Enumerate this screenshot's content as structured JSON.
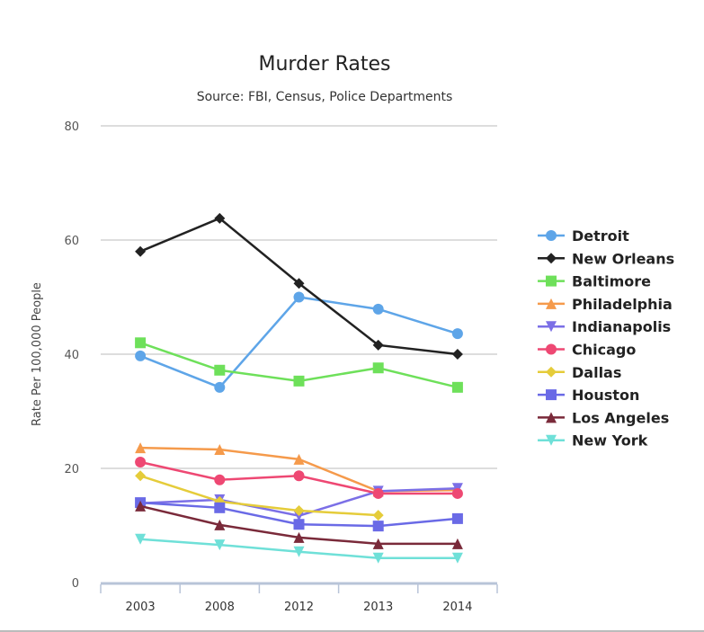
{
  "chart_data": {
    "type": "line",
    "title": "Murder Rates",
    "subtitle": "Source: FBI, Census, Police Departments",
    "xlabel": "",
    "ylabel": "Rate Per 100,000 People",
    "ylim": [
      0,
      80
    ],
    "yticks": [
      0,
      20,
      40,
      60,
      80
    ],
    "grid": true,
    "legend_position": "right",
    "categories": [
      "2003",
      "2008",
      "2012",
      "2013",
      "2014"
    ],
    "series": [
      {
        "name": "Detroit",
        "color": "#5ea5e8",
        "marker": "circle",
        "values": [
          39.7,
          34.2,
          50.0,
          47.9,
          43.6
        ]
      },
      {
        "name": "New Orleans",
        "color": "#222222",
        "marker": "diamond",
        "values": [
          58.0,
          63.8,
          52.4,
          41.6,
          40.0
        ]
      },
      {
        "name": "Baltimore",
        "color": "#6ee05a",
        "marker": "square",
        "values": [
          42.0,
          37.2,
          35.3,
          37.6,
          34.2
        ]
      },
      {
        "name": "Philadelphia",
        "color": "#f59a4b",
        "marker": "triangle",
        "values": [
          23.6,
          23.3,
          21.6,
          16.0,
          16.2
        ]
      },
      {
        "name": "Indianapolis",
        "color": "#7b6fe6",
        "marker": "triangle-down",
        "values": [
          13.9,
          14.5,
          11.7,
          16.0,
          16.5
        ]
      },
      {
        "name": "Chicago",
        "color": "#ee4873",
        "marker": "circle",
        "values": [
          21.1,
          18.0,
          18.7,
          15.6,
          15.6
        ]
      },
      {
        "name": "Dallas",
        "color": "#e5cc3a",
        "marker": "diamond",
        "values": [
          18.7,
          14.2,
          12.6,
          11.8,
          null
        ]
      },
      {
        "name": "Houston",
        "color": "#6a6ae6",
        "marker": "square",
        "values": [
          14.0,
          13.1,
          10.2,
          9.9,
          11.2
        ]
      },
      {
        "name": "Los Angeles",
        "color": "#7a2a3a",
        "marker": "triangle",
        "values": [
          13.4,
          10.1,
          7.9,
          6.8,
          6.8
        ]
      },
      {
        "name": "New York",
        "color": "#6fe0d8",
        "marker": "triangle-down",
        "values": [
          7.6,
          6.6,
          5.4,
          4.3,
          4.3
        ]
      }
    ]
  }
}
